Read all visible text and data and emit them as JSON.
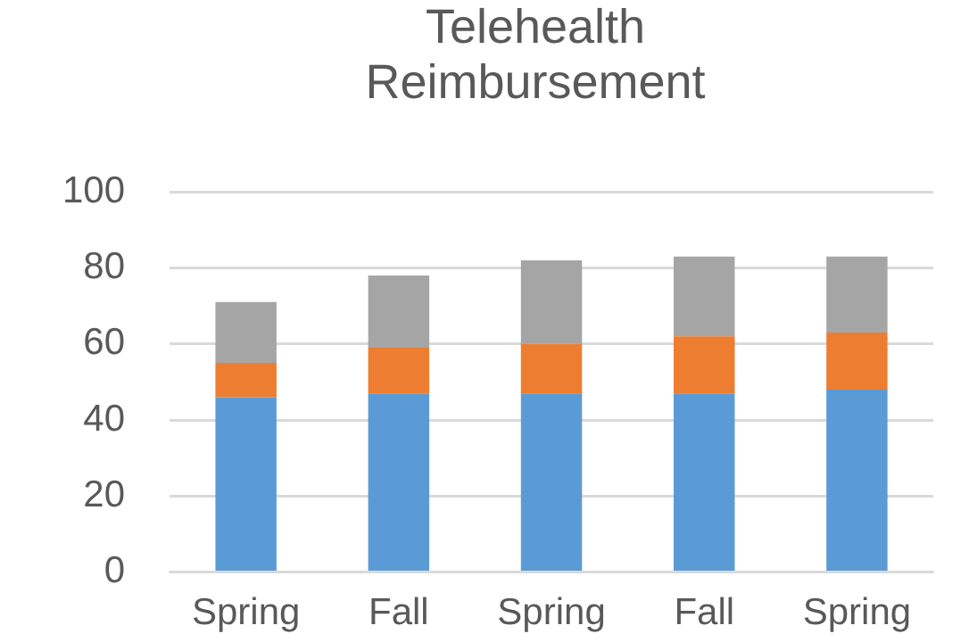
{
  "chart_data": {
    "type": "bar",
    "title": "Telehealth Reimbursement",
    "stacked": true,
    "categories": [
      "Spring",
      "Fall",
      "Spring",
      "Fall",
      "Spring"
    ],
    "series": [
      {
        "color": "#5b9bd5",
        "values": [
          46,
          47,
          47,
          47,
          48
        ]
      },
      {
        "color": "#ed7d31",
        "values": [
          9,
          12,
          13,
          15,
          15
        ]
      },
      {
        "color": "#a5a5a5",
        "values": [
          16,
          19,
          22,
          21,
          20
        ]
      }
    ],
    "ylim": [
      0,
      100
    ],
    "yticks": [
      0,
      20,
      40,
      60,
      80,
      100
    ],
    "grid": "y",
    "legend": false
  }
}
